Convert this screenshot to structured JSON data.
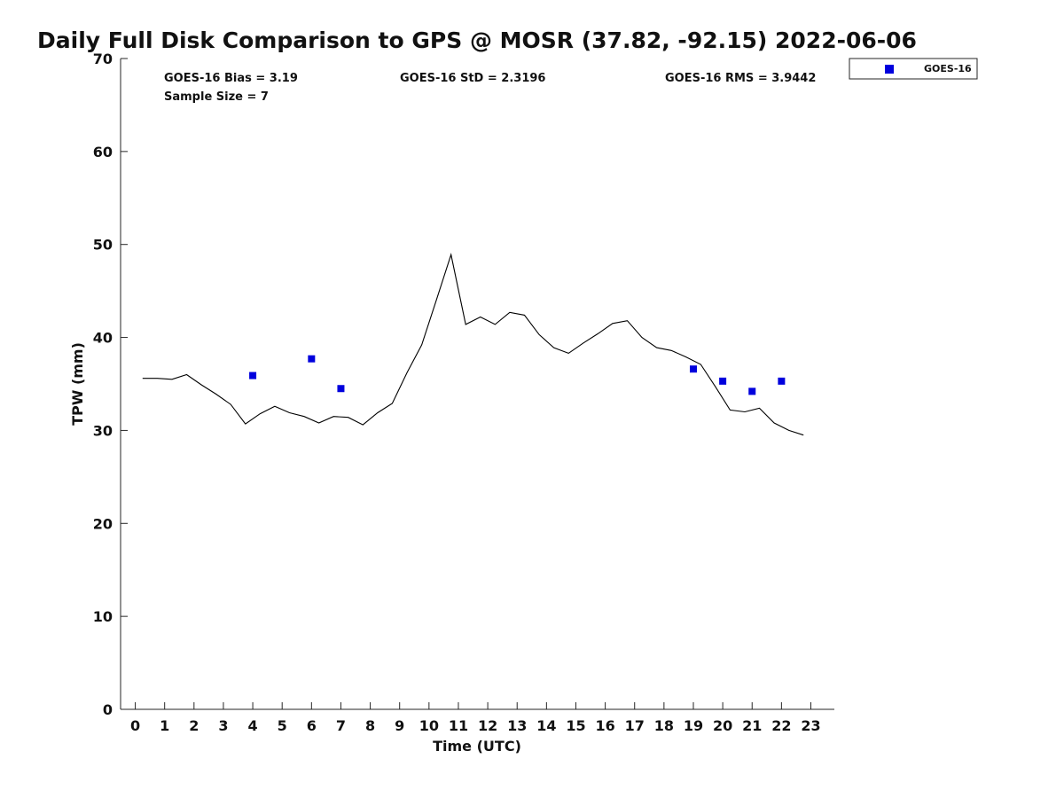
{
  "chart_data": {
    "type": "scatter",
    "title": "Daily Full Disk Comparison to GPS @ MOSR (37.82, -92.15) 2022-06-06",
    "xlabel": "Time (UTC)",
    "ylabel": "TPW (mm)",
    "xlim": [
      -0.5,
      23.8
    ],
    "ylim": [
      0,
      70
    ],
    "xticks": [
      0,
      1,
      2,
      3,
      4,
      5,
      6,
      7,
      8,
      9,
      10,
      11,
      12,
      13,
      14,
      15,
      16,
      17,
      18,
      19,
      20,
      21,
      22,
      23
    ],
    "yticks": [
      0,
      10,
      20,
      30,
      40,
      50,
      60,
      70
    ],
    "grid": false,
    "legend_position": "outside-top-right",
    "stats": {
      "bias": "GOES-16 Bias = 3.19",
      "sample_size": "Sample Size = 7",
      "std": "GOES-16 StD = 2.3196",
      "rms": "GOES-16 RMS = 3.9442"
    },
    "series": [
      {
        "role": "reference-line",
        "color": "#000000",
        "x": [
          0.25,
          0.75,
          1.25,
          1.75,
          2.25,
          2.75,
          3.25,
          3.75,
          4.25,
          4.75,
          5.25,
          5.75,
          6.25,
          6.75,
          7.25,
          7.75,
          8.25,
          8.75,
          9.25,
          9.75,
          10.25,
          10.75,
          11.25,
          11.75,
          12.25,
          12.75,
          13.25,
          13.75,
          14.25,
          14.75,
          15.25,
          15.75,
          16.25,
          16.75,
          17.25,
          17.75,
          18.25,
          18.75,
          19.25,
          19.75,
          20.25,
          20.75,
          21.25,
          21.75,
          22.25,
          22.75
        ],
        "y": [
          35.6,
          35.6,
          35.5,
          36.0,
          34.9,
          33.9,
          32.8,
          30.7,
          31.8,
          32.6,
          31.9,
          31.5,
          30.8,
          31.5,
          31.4,
          30.6,
          31.9,
          32.9,
          36.2,
          39.2,
          44.0,
          48.9,
          41.4,
          42.2,
          41.4,
          42.7,
          42.4,
          40.3,
          38.9,
          38.3,
          39.4,
          40.4,
          41.5,
          41.8,
          40.0,
          38.9,
          38.6,
          37.9,
          37.1,
          34.7,
          32.2,
          32.0,
          32.4,
          30.8,
          30.0,
          29.5
        ]
      },
      {
        "name": "GOES-16",
        "role": "markers",
        "color": "#0000dd",
        "x": [
          4,
          6,
          7,
          19,
          20,
          21,
          22
        ],
        "y": [
          35.9,
          37.7,
          34.5,
          36.6,
          35.3,
          34.2,
          35.3
        ]
      }
    ]
  }
}
